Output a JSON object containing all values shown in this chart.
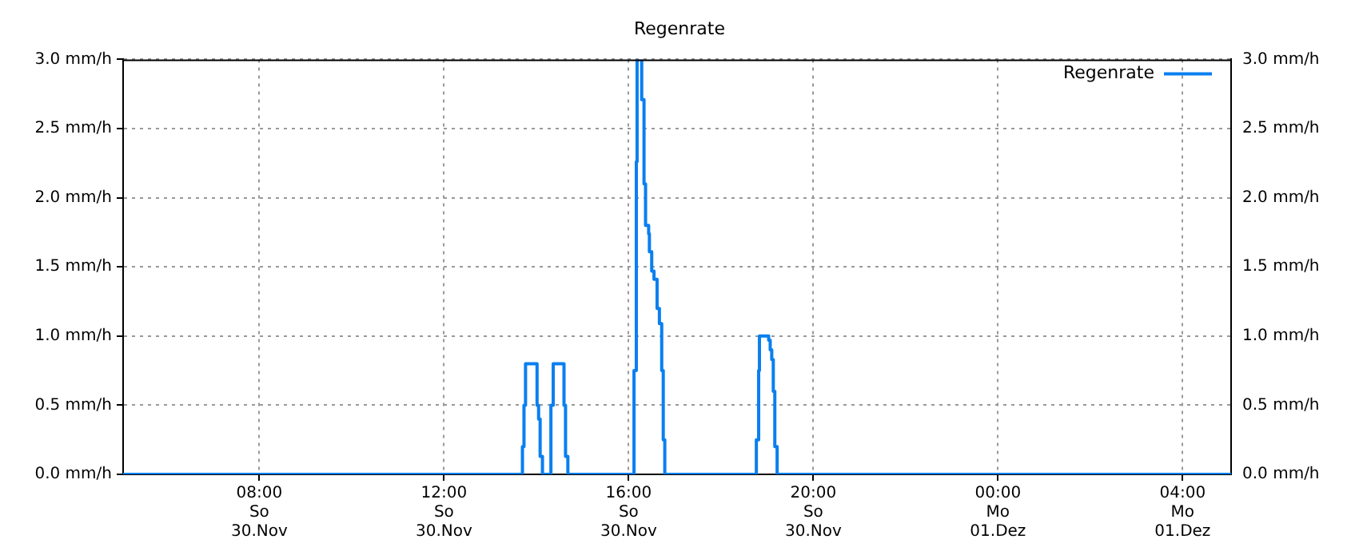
{
  "chart_data": {
    "type": "step",
    "title": "Regenrate",
    "x": [
      "--11-30T05:03",
      "--11-30T13:42",
      "--11-30T13:44",
      "--11-30T13:46",
      "--11-30T14:01",
      "--11-30T14:03",
      "--11-30T14:05",
      "--11-30T14:08",
      "--11-30T14:19",
      "--11-30T14:22",
      "--11-30T14:36",
      "--11-30T14:38",
      "--11-30T14:41",
      "--11-30T14:43",
      "--11-30T16:07",
      "--11-30T16:10",
      "--11-30T16:11",
      "--11-30T16:17",
      "--11-30T16:20",
      "--11-30T16:22",
      "--11-30T16:26",
      "--11-30T16:27",
      "--11-30T16:30",
      "--11-30T16:33",
      "--11-30T16:37",
      "--11-30T16:40",
      "--11-30T16:43",
      "--11-30T16:45",
      "--11-30T16:47",
      "--11-30T18:46",
      "--11-30T18:49",
      "--11-30T18:50",
      "--11-30T19:02",
      "--11-30T19:04",
      "--11-30T19:06",
      "--11-30T19:08",
      "--11-30T19:10",
      "--11-30T19:13",
      "--12-01T05:03"
    ],
    "series": [
      {
        "name": "Regenrate",
        "color": "#0a7ff0",
        "values": [
          0,
          0.2,
          0.5,
          0.8,
          0.5,
          0.4,
          0.13,
          0,
          0.5,
          0.8,
          0.5,
          0.13,
          0,
          0,
          0.75,
          2.26,
          3.0,
          2.71,
          2.1,
          1.8,
          1.74,
          1.61,
          1.47,
          1.41,
          1.2,
          1.09,
          0.75,
          0.25,
          0,
          0.25,
          0.75,
          1.0,
          0.97,
          0.9,
          0.83,
          0.6,
          0.2,
          0,
          0
        ]
      }
    ],
    "xlim": [
      "--11-30T05:03",
      "--12-01T05:03"
    ],
    "xticks": [
      {
        "value": "--11-30T08:00",
        "label": "08:00\nSo\n30.Nov"
      },
      {
        "value": "--11-30T12:00",
        "label": "12:00\nSo\n30.Nov"
      },
      {
        "value": "--11-30T16:00",
        "label": "16:00\nSo\n30.Nov"
      },
      {
        "value": "--11-30T20:00",
        "label": "20:00\nSo\n30.Nov"
      },
      {
        "value": "--12-01T00:00",
        "label": "00:00\nMo\n01.Dez"
      },
      {
        "value": "--12-01T04:00",
        "label": "04:00\nMo\n01.Dez"
      }
    ],
    "ylim": [
      0,
      3
    ],
    "yticks": [
      {
        "value": 0,
        "label": "0.0 mm/h"
      },
      {
        "value": 0.5,
        "label": "0.5 mm/h"
      },
      {
        "value": 1,
        "label": "1.0 mm/h"
      },
      {
        "value": 1.5,
        "label": "1.5 mm/h"
      },
      {
        "value": 2,
        "label": "2.0 mm/h"
      },
      {
        "value": 2.5,
        "label": "2.5 mm/h"
      },
      {
        "value": 3,
        "label": "3.0 mm/h"
      }
    ],
    "y2lim": [
      0,
      3
    ],
    "y2ticks": [
      {
        "value": 0,
        "label": "0.0 mm/h"
      },
      {
        "value": 0.5,
        "label": "0.5 mm/h"
      },
      {
        "value": 1,
        "label": "1.0 mm/h"
      },
      {
        "value": 1.5,
        "label": "1.5 mm/h"
      },
      {
        "value": 2,
        "label": "2.0 mm/h"
      },
      {
        "value": 2.5,
        "label": "2.5 mm/h"
      },
      {
        "value": 3,
        "label": "3.0 mm/h"
      }
    ],
    "grid": true,
    "legend": "top right",
    "marker": "none",
    "line_style": "solid"
  }
}
